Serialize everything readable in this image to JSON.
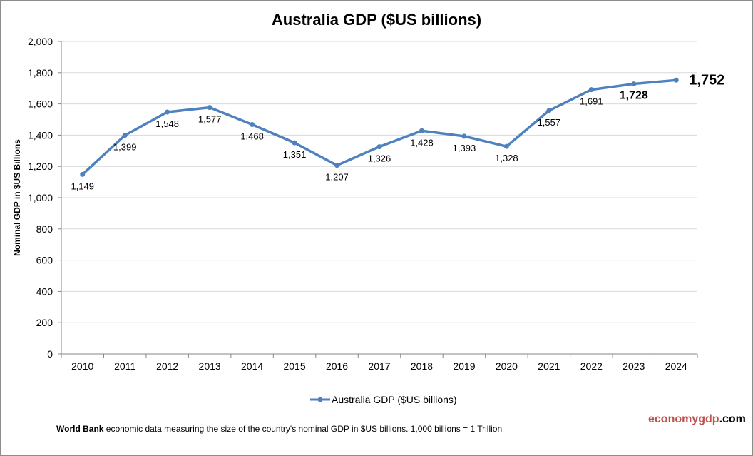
{
  "chart_data": {
    "type": "line",
    "title": "Australia GDP ($US billions)",
    "xlabel": "",
    "ylabel": "Nominal GDP in $US Billions",
    "ylim": [
      0,
      2000
    ],
    "yticks": [
      0,
      200,
      400,
      600,
      800,
      1000,
      1200,
      1400,
      1600,
      1800,
      2000
    ],
    "ytick_labels": [
      "0",
      "200",
      "400",
      "600",
      "800",
      "1,000",
      "1,200",
      "1,400",
      "1,600",
      "1,800",
      "2,000"
    ],
    "grid": true,
    "legend_position": "bottom",
    "categories": [
      "2010",
      "2011",
      "2012",
      "2013",
      "2014",
      "2015",
      "2016",
      "2017",
      "2018",
      "2019",
      "2020",
      "2021",
      "2022",
      "2023",
      "2024"
    ],
    "series": [
      {
        "name": "Australia GDP ($US billions)",
        "color": "#4f81bd",
        "values": [
          1149,
          1399,
          1548,
          1577,
          1468,
          1351,
          1207,
          1326,
          1428,
          1393,
          1328,
          1557,
          1691,
          1728,
          1752
        ],
        "labels": [
          "1,149",
          "1,399",
          "1,548",
          "1,577",
          "1,468",
          "1,351",
          "1,207",
          "1,326",
          "1,428",
          "1,393",
          "1,328",
          "1,557",
          "1,691",
          "1,728",
          "1,752"
        ]
      }
    ]
  },
  "footer": {
    "source_bold": "World Bank",
    "source_text": " economic data  measuring the size of the country's nominal GDP in $US billions. 1,000 billions = 1 Trillion",
    "brand_part1": "economygdp",
    "brand_part2": ".com",
    "brand_color": "#c0504d"
  }
}
